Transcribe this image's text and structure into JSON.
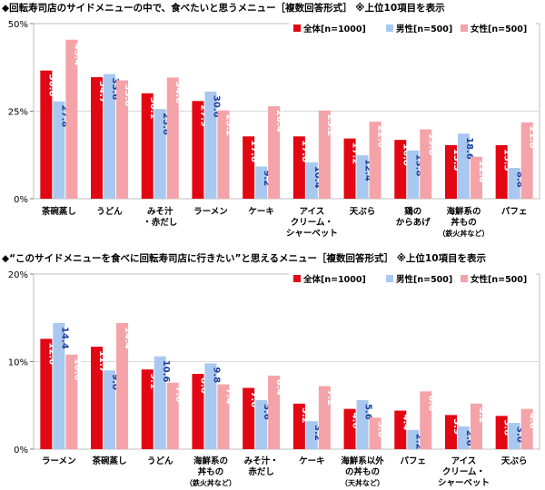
{
  "colors": {
    "all": "#e30613",
    "male": "#a9c8f0",
    "female": "#f4a3a8"
  },
  "chart_data": [
    {
      "type": "bar",
      "title": "◆回転寿司店のサイドメニューの中で、食べたいと思うメニュー［複数回答形式］ ※上位10項目を表示",
      "categories": [
        [
          "茶碗蒸し"
        ],
        [
          "うどん"
        ],
        [
          "みそ汁",
          "・赤だし"
        ],
        [
          "ラーメン"
        ],
        [
          "ケーキ"
        ],
        [
          "アイス",
          "クリーム・",
          "シャーベット"
        ],
        [
          "天ぷら"
        ],
        [
          "鶏の",
          "からあげ"
        ],
        [
          "海鮮系の",
          "丼もの",
          "（鉄火丼など）"
        ],
        [
          "パフェ"
        ]
      ],
      "series": [
        {
          "name": "全体[n=1000]",
          "key": "all",
          "values": [
            36.6,
            34.7,
            30.1,
            27.9,
            17.8,
            17.8,
            17.2,
            16.8,
            15.3,
            15.3
          ]
        },
        {
          "name": "男性[n=500]",
          "key": "male",
          "values": [
            27.8,
            35.6,
            25.6,
            30.6,
            9.2,
            10.4,
            12.4,
            13.8,
            18.6,
            8.8
          ]
        },
        {
          "name": "女性[n=500]",
          "key": "female",
          "values": [
            45.4,
            33.8,
            34.6,
            25.2,
            26.4,
            25.2,
            22.0,
            19.8,
            12.0,
            21.8
          ]
        }
      ],
      "yticks": [
        "0%",
        "25%",
        "50%"
      ],
      "ylim": [
        0,
        50
      ],
      "legend": "top-right"
    },
    {
      "type": "bar",
      "title": "◆“このサイドメニューを食べに回転寿司店に行きたい”と思えるメニュー［複数回答形式］ ※上位10項目を表示",
      "categories": [
        [
          "ラーメン"
        ],
        [
          "茶碗蒸し"
        ],
        [
          "うどん"
        ],
        [
          "海鮮系の",
          "丼もの",
          "（鉄火丼など）"
        ],
        [
          "みそ汁・",
          "赤だし"
        ],
        [
          "ケーキ"
        ],
        [
          "海鮮系以外",
          "の丼もの",
          "（天丼など）"
        ],
        [
          "パフェ"
        ],
        [
          "アイス",
          "クリーム・",
          "シャーベット"
        ],
        [
          "天ぷら"
        ]
      ],
      "series": [
        {
          "name": "全体[n=1000]",
          "key": "all",
          "values": [
            12.6,
            11.7,
            9.1,
            8.6,
            7.0,
            5.2,
            4.6,
            4.4,
            3.9,
            3.8
          ]
        },
        {
          "name": "男性[n=500]",
          "key": "male",
          "values": [
            14.4,
            9.0,
            10.6,
            9.8,
            5.6,
            3.2,
            5.6,
            2.2,
            2.6,
            3.0
          ]
        },
        {
          "name": "女性[n=500]",
          "key": "female",
          "values": [
            10.8,
            14.4,
            7.6,
            7.4,
            8.4,
            7.2,
            3.6,
            6.6,
            5.2,
            4.6
          ]
        }
      ],
      "yticks": [
        "0%",
        "10%",
        "20%"
      ],
      "ylim": [
        0,
        20
      ],
      "legend": "top-right"
    }
  ]
}
